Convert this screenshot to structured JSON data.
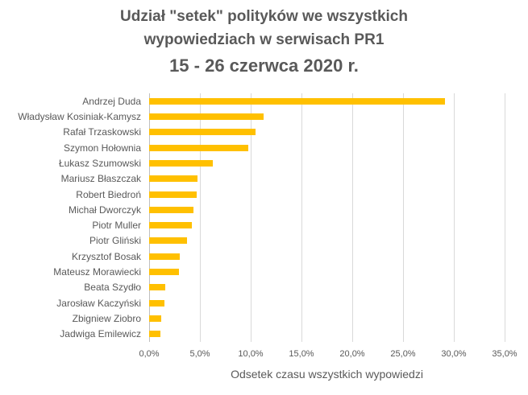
{
  "chart_data": {
    "type": "bar",
    "orientation": "horizontal",
    "title": "Udział \"setek\" polityków we wszystkich wypowiedziach w serwisach PR1",
    "title_lines": [
      "Udział \"setek\" polityków we wszystkich",
      "wypowiedziach w serwisach PR1",
      "15 - 26 czerwca 2020 r."
    ],
    "subtitle": "15 - 26 czerwca 2020 r.",
    "xlabel": "Odsetek czasu wszystkich wypowiedzi",
    "ylabel": "",
    "xlim": [
      0,
      35
    ],
    "x_ticks": [
      "0,0%",
      "5,0%",
      "10,0%",
      "15,0%",
      "20,0%",
      "25,0%",
      "30,0%",
      "35,0%"
    ],
    "grid": true,
    "legend": null,
    "bar_color": "#ffc000",
    "categories": [
      "Andrzej Duda",
      "Władysław Kosiniak-Kamysz",
      "Rafał Trzaskowski",
      "Szymon Hołownia",
      "Łukasz Szumowski",
      "Mariusz Błaszczak",
      "Robert Biedroń",
      "Michał Dworczyk",
      "Piotr Muller",
      "Piotr Gliński",
      "Krzysztof Bosak",
      "Mateusz Morawiecki",
      "Beata Szydło",
      "Jarosław Kaczyński",
      "Zbigniew Ziobro",
      "Jadwiga Emilewicz"
    ],
    "values": [
      29.1,
      11.3,
      10.5,
      9.8,
      6.3,
      4.8,
      4.7,
      4.4,
      4.2,
      3.7,
      3.0,
      2.9,
      1.6,
      1.5,
      1.2,
      1.1
    ],
    "unit": "%"
  }
}
